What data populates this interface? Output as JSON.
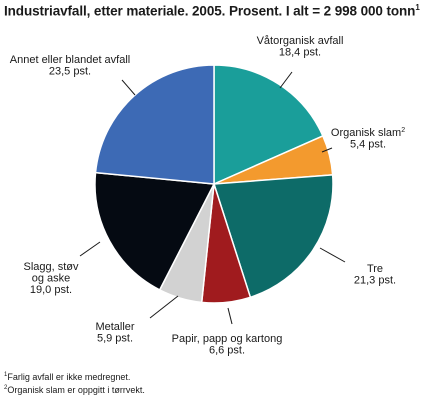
{
  "title": "Industriavfall, etter materiale. 2005. Prosent. I alt = 2 998 000 tonn",
  "title_footnote_mark": "1",
  "footnotes": [
    {
      "mark": "1",
      "text": "Farlig avfall er ikke medregnet."
    },
    {
      "mark": "2",
      "text": "Organisk slam er oppgitt i tørrvekt."
    }
  ],
  "chart_data": {
    "type": "pie",
    "title": "Industriavfall, etter materiale. 2005. Prosent. I alt = 2 998 000 tonn",
    "unit": "pst.",
    "total": "2 998 000 tonn",
    "start": "12 o'clock",
    "direction": "clockwise",
    "slices": [
      {
        "label": "Våtorganisk avfall",
        "value": 18.4,
        "value_text": "18,4 pst.",
        "color": "#1a9e9a"
      },
      {
        "label": "Organisk slam",
        "footnote": "2",
        "value": 5.4,
        "value_text": "5,4 pst.",
        "color": "#f39a2e"
      },
      {
        "label": "Tre",
        "value": 21.3,
        "value_text": "21,3 pst.",
        "color": "#0d6b68"
      },
      {
        "label": "Papir, papp og kartong",
        "value": 6.6,
        "value_text": "6,6 pst.",
        "color": "#a01b1e"
      },
      {
        "label": "Metaller",
        "value": 5.9,
        "value_text": "5,9 pst.",
        "color": "#d2d2d2"
      },
      {
        "label": "Slagg, støv og aske",
        "label_lines": [
          "Slagg, støv",
          "og aske"
        ],
        "value": 19.0,
        "value_text": "19,0 pst.",
        "color": "#050a12"
      },
      {
        "label": "Annet eller blandet avfall",
        "value": 23.5,
        "value_text": "23,5 pst.",
        "color": "#3d6ab5"
      }
    ]
  }
}
